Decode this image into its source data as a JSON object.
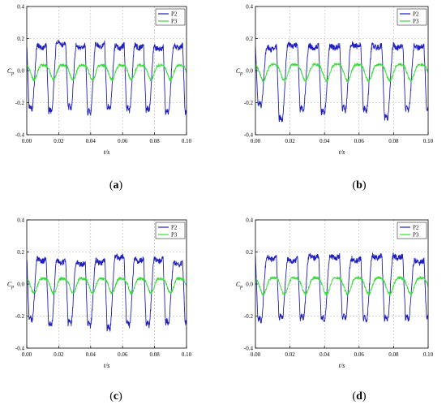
{
  "chart_data": [
    {
      "type": "line",
      "caption": "(a)",
      "caption_letter": "a",
      "xlabel": "t/s",
      "ylabel_main": "C",
      "ylabel_sub": "p",
      "xlim": [
        0.0,
        0.1
      ],
      "ylim": [
        -0.4,
        0.4
      ],
      "xticks": [
        "0.00",
        "0.02",
        "0.04",
        "0.06",
        "0.08",
        "0.10"
      ],
      "yticks": [
        "-0.4",
        "-0.2",
        "0.0",
        "0.2",
        "0.4"
      ],
      "grid": true,
      "legend_position": "top-right",
      "period": 0.0122,
      "p2_peak_values": [
        0.16,
        0.18,
        0.16,
        0.17,
        0.16,
        0.16,
        0.15,
        0.16
      ],
      "p2_trough_values": [
        -0.24,
        -0.26,
        -0.24,
        -0.27,
        -0.24,
        -0.25,
        -0.25,
        -0.27
      ],
      "p3_amplitude": 0.045,
      "series": [
        {
          "name": "P2",
          "color": "#1f1fbf"
        },
        {
          "name": "P3",
          "color": "#33dd33"
        }
      ]
    },
    {
      "type": "line",
      "caption": "(b)",
      "caption_letter": "b",
      "xlabel": "t/s",
      "ylabel_main": "C",
      "ylabel_sub": "p",
      "xlim": [
        0.0,
        0.1
      ],
      "ylim": [
        -0.4,
        0.4
      ],
      "xticks": [
        "0.00",
        "0.02",
        "0.04",
        "0.06",
        "0.08",
        "0.10"
      ],
      "yticks": [
        "-0.4",
        "-0.2",
        "0.0",
        "0.2",
        "0.4"
      ],
      "grid": true,
      "legend_position": "top-right",
      "period": 0.0122,
      "p2_peak_values": [
        0.15,
        0.17,
        0.16,
        0.16,
        0.17,
        0.16,
        0.16,
        0.16
      ],
      "p2_trough_values": [
        -0.22,
        -0.31,
        -0.25,
        -0.27,
        -0.25,
        -0.25,
        -0.3,
        -0.25
      ],
      "p3_amplitude": 0.05,
      "series": [
        {
          "name": "P2",
          "color": "#1f1fbf"
        },
        {
          "name": "P3",
          "color": "#33dd33"
        }
      ]
    },
    {
      "type": "line",
      "caption": "(c)",
      "caption_letter": "c",
      "xlabel": "t/s",
      "ylabel_main": "C",
      "ylabel_sub": "p",
      "xlim": [
        0.0,
        0.1
      ],
      "ylim": [
        -0.4,
        0.4
      ],
      "xticks": [
        "0.00",
        "0.02",
        "0.04",
        "0.06",
        "0.08",
        "0.10"
      ],
      "yticks": [
        "-0.4",
        "-0.2",
        "0.0",
        "0.2",
        "0.4"
      ],
      "grid": true,
      "legend_position": "top-right",
      "period": 0.0122,
      "p2_peak_values": [
        0.16,
        0.15,
        0.14,
        0.15,
        0.18,
        0.16,
        0.16,
        0.14
      ],
      "p2_trough_values": [
        -0.23,
        -0.26,
        -0.25,
        -0.26,
        -0.28,
        -0.26,
        -0.26,
        -0.25
      ],
      "p3_amplitude": 0.045,
      "series": [
        {
          "name": "P2",
          "color": "#1f1fbf"
        },
        {
          "name": "P3",
          "color": "#33dd33"
        }
      ]
    },
    {
      "type": "line",
      "caption": "(d)",
      "caption_letter": "d",
      "xlabel": "t/s",
      "ylabel_main": "C",
      "ylabel_sub": "p",
      "xlim": [
        0.0,
        0.1
      ],
      "ylim": [
        -0.4,
        0.4
      ],
      "xticks": [
        "0.00",
        "0.02",
        "0.04",
        "0.06",
        "0.08",
        "0.10"
      ],
      "yticks": [
        "-0.4",
        "-0.2",
        "0.0",
        "0.2",
        "0.4"
      ],
      "grid": true,
      "legend_position": "top-right",
      "period": 0.0122,
      "p2_peak_values": [
        0.17,
        0.16,
        0.18,
        0.18,
        0.16,
        0.18,
        0.18,
        0.15
      ],
      "p2_trough_values": [
        -0.23,
        -0.22,
        -0.22,
        -0.23,
        -0.22,
        -0.23,
        -0.22,
        -0.22
      ],
      "p3_amplitude": 0.05,
      "series": [
        {
          "name": "P2",
          "color": "#1f1fbf"
        },
        {
          "name": "P3",
          "color": "#33dd33"
        }
      ]
    }
  ]
}
